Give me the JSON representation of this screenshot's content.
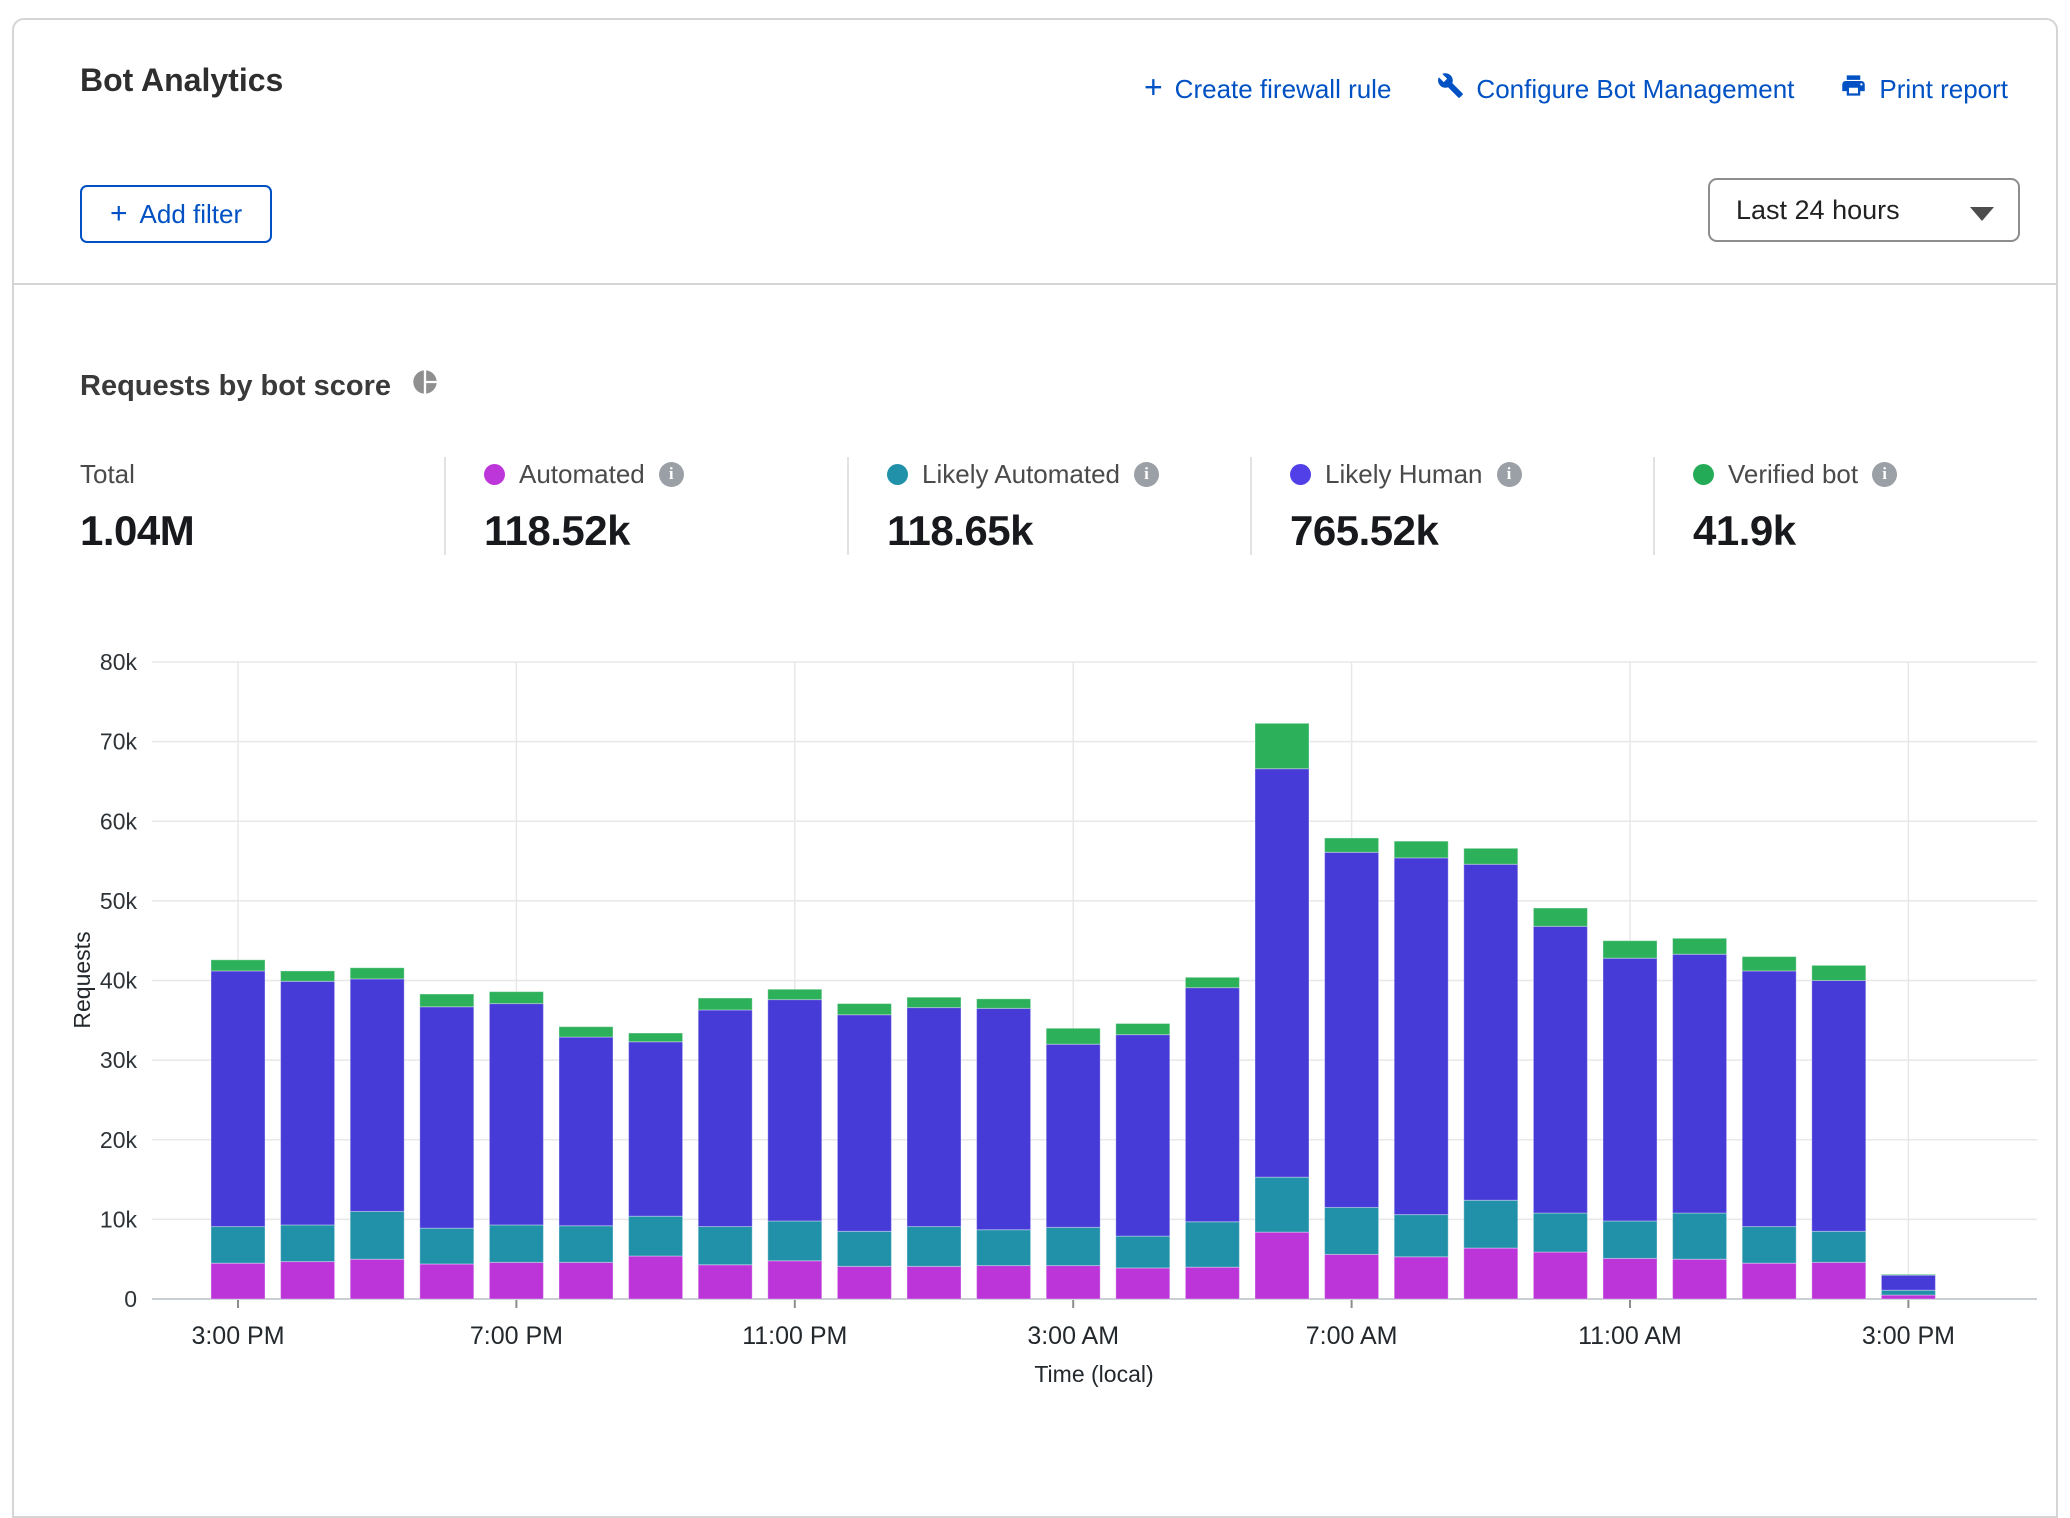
{
  "header": {
    "title": "Bot Analytics",
    "actions": [
      {
        "label": "Create firewall rule",
        "icon": "plus-icon"
      },
      {
        "label": "Configure Bot Management",
        "icon": "wrench-icon"
      },
      {
        "label": "Print report",
        "icon": "printer-icon"
      }
    ],
    "add_filter_label": "Add filter",
    "time_range_value": "Last 24 hours"
  },
  "section": {
    "title": "Requests by bot score"
  },
  "stats": {
    "total": {
      "label": "Total",
      "value": "1.04M"
    },
    "items": [
      {
        "label": "Automated",
        "value": "118.52k",
        "color": "#bd36d9"
      },
      {
        "label": "Likely Automated",
        "value": "118.65k",
        "color": "#2191a9"
      },
      {
        "label": "Likely Human",
        "value": "765.52k",
        "color": "#5140e8"
      },
      {
        "label": "Verified bot",
        "value": "41.9k",
        "color": "#23ab57"
      }
    ]
  },
  "chart_data": {
    "type": "bar",
    "stacked": true,
    "title": "Requests by bot score",
    "xlabel": "Time (local)",
    "ylabel": "Requests",
    "ylim": [
      0,
      80000
    ],
    "grid": true,
    "y_ticks": [
      "0",
      "10k",
      "20k",
      "30k",
      "40k",
      "50k",
      "60k",
      "70k",
      "80k"
    ],
    "hours": [
      "3:00 PM",
      "4:00 PM",
      "5:00 PM",
      "6:00 PM",
      "7:00 PM",
      "8:00 PM",
      "9:00 PM",
      "10:00 PM",
      "11:00 PM",
      "12:00 AM",
      "1:00 AM",
      "2:00 AM",
      "3:00 AM",
      "4:00 AM",
      "5:00 AM",
      "6:00 AM",
      "7:00 AM",
      "8:00 AM",
      "9:00 AM",
      "10:00 AM",
      "11:00 AM",
      "12:00 PM",
      "1:00 PM",
      "2:00 PM",
      "3:00 PM"
    ],
    "x_tick_indices": [
      0,
      4,
      8,
      12,
      16,
      20,
      24
    ],
    "x_tick_labels": [
      "3:00 PM",
      "7:00 PM",
      "11:00 PM",
      "3:00 AM",
      "7:00 AM",
      "11:00 AM",
      "3:00 PM"
    ],
    "series": [
      {
        "name": "Automated",
        "color": "#bb35d9",
        "values_k": [
          4.5,
          4.7,
          5.0,
          4.4,
          4.6,
          4.6,
          5.4,
          4.3,
          4.8,
          4.1,
          4.1,
          4.2,
          4.2,
          3.9,
          4.0,
          8.4,
          5.6,
          5.3,
          6.4,
          5.9,
          5.1,
          5.0,
          4.5,
          4.6,
          0.5
        ]
      },
      {
        "name": "Likely Automated",
        "color": "#2191a9",
        "values_k": [
          4.6,
          4.6,
          6.0,
          4.5,
          4.7,
          4.6,
          5.0,
          4.8,
          5.0,
          4.4,
          5.0,
          4.5,
          4.8,
          4.0,
          5.7,
          6.9,
          5.9,
          5.3,
          6.0,
          4.9,
          4.7,
          5.8,
          4.6,
          3.9,
          0.6
        ]
      },
      {
        "name": "Likely Human",
        "color": "#473bd8",
        "values_k": [
          32.1,
          30.6,
          29.2,
          27.8,
          27.8,
          23.7,
          21.9,
          27.2,
          27.8,
          27.2,
          27.5,
          27.8,
          23.0,
          25.3,
          29.4,
          51.3,
          44.6,
          44.8,
          42.2,
          36.0,
          33.0,
          32.5,
          32.1,
          31.5,
          1.9
        ]
      },
      {
        "name": "Verified bot",
        "color": "#2cb05a",
        "values_k": [
          1.4,
          1.3,
          1.4,
          1.6,
          1.5,
          1.3,
          1.1,
          1.5,
          1.3,
          1.4,
          1.3,
          1.2,
          2.0,
          1.4,
          1.3,
          5.7,
          1.8,
          2.1,
          2.0,
          2.3,
          2.2,
          2.0,
          1.8,
          1.9,
          0.1
        ]
      }
    ]
  }
}
